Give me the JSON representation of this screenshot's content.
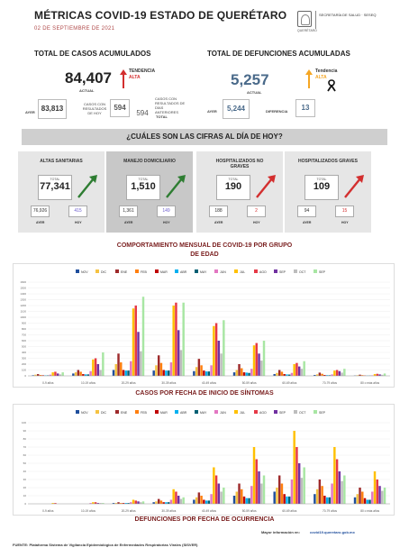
{
  "header": {
    "title": "MÉTRICAS COVID-19 ESTADO DE QUERÉTARO",
    "date": "02 DE SEPTIEMBRE DE 2021",
    "logo_text": "SECRETARÍA DE SALUD · SESEQ",
    "logo_caption": "QUERÉTARO"
  },
  "casos": {
    "heading": "TOTAL DE CASOS ACUMULADOS",
    "actual": "84,407",
    "actual_label": "ACTUAL",
    "tendencia_label": "TENDENCIA",
    "tendencia_value": "ALTA",
    "ayer_label": "AYER",
    "ayer": "83,813",
    "casos_con_label": "CASOS CON RESULTADOS DE HOY",
    "casos_con": "594",
    "casos_anteriores_label": "CASOS CON RESULTADOS DE DÍAS ANTERIORES",
    "total": "594",
    "total_label": "TOTAL"
  },
  "defunciones": {
    "heading": "TOTAL DE DEFUNCIONES ACUMULADAS",
    "actual": "5,257",
    "actual_label": "ACTUAL",
    "tendencia_label": "Tendencia",
    "tendencia_value": "ALTA",
    "ayer_label": "AYER",
    "ayer": "5,244",
    "diferencia_label": "DIFERENCIA",
    "diferencia": "13"
  },
  "banner": "¿CUÁLES SON LAS CIFRAS AL DÍA DE HOY?",
  "cards": [
    {
      "title": "ALTAS SANITARIAS",
      "total_label": "TOTAL",
      "total": "77,341",
      "ayer": "76,926",
      "hoy": "415",
      "ayer_label": "AYER",
      "hoy_label": "HOY",
      "arrow_color": "#2e7d32"
    },
    {
      "title": "MANEJO DOMICILIARIO",
      "total_label": "TOTAL",
      "total": "1,510",
      "ayer": "1,361",
      "hoy": "149",
      "ayer_label": "AYER",
      "hoy_label": "HOY",
      "arrow_color": "#2e7d32"
    },
    {
      "title": "HOSPITALIZADOS NO GRAVES",
      "total_label": "TOTAL",
      "total": "190",
      "ayer": "188",
      "hoy": "2",
      "ayer_label": "AYER",
      "hoy_label": "HOY",
      "arrow_color": "#d32f2f"
    },
    {
      "title": "HOSPITALIZADOS GRAVES",
      "total_label": "TOTAL",
      "total": "109",
      "ayer": "94",
      "hoy": "15",
      "ayer_label": "AYER",
      "hoy_label": "HOY",
      "arrow_color": "#d32f2f"
    }
  ],
  "section_title": "COMPORTAMIENTO MENSUAL DE COVID-19 POR GRUPO DE EDAD",
  "chart_data": [
    {
      "type": "bar",
      "title": "CASOS POR FECHA DE INICIO DE SÍNTOMAS",
      "categories": [
        "0-9 años",
        "10-19 años",
        "20-29 años",
        "30-39 años",
        "40-49 años",
        "50-59 años",
        "60-69 años",
        "70-79 años",
        "80 o más años"
      ],
      "ylim": [
        0,
        1600
      ],
      "yticks": [
        0,
        100,
        200,
        300,
        400,
        500,
        600,
        700,
        800,
        900,
        1000,
        1100,
        1200,
        1300,
        1400,
        1500,
        1600
      ],
      "colors": [
        "#1f4e9c",
        "#f5c242",
        "#9e2a2b",
        "#ff7f0e",
        "#c00000",
        "#00b0f0",
        "#005f73",
        "#e377c2",
        "#ffc000",
        "#e63946",
        "#7030a0",
        "#bdbdbd",
        "#a8e6a3"
      ],
      "series": [
        {
          "name": "NOV",
          "values": [
            10,
            40,
            100,
            90,
            80,
            60,
            30,
            15,
            5
          ]
        },
        {
          "name": "DIC",
          "values": [
            20,
            60,
            200,
            180,
            150,
            100,
            50,
            25,
            10
          ]
        },
        {
          "name": "ENE",
          "values": [
            30,
            100,
            380,
            350,
            290,
            200,
            100,
            55,
            20
          ]
        },
        {
          "name": "FEB",
          "values": [
            15,
            70,
            230,
            220,
            180,
            130,
            70,
            35,
            12
          ]
        },
        {
          "name": "MAR",
          "values": [
            10,
            30,
            100,
            100,
            90,
            60,
            30,
            15,
            5
          ]
        },
        {
          "name": "ABR",
          "values": [
            8,
            25,
            90,
            90,
            75,
            55,
            25,
            12,
            4
          ]
        },
        {
          "name": "MAY",
          "values": [
            8,
            25,
            90,
            90,
            75,
            50,
            22,
            10,
            4
          ]
        },
        {
          "name": "JUN",
          "values": [
            20,
            80,
            250,
            230,
            180,
            120,
            50,
            25,
            8
          ]
        },
        {
          "name": "JUL",
          "values": [
            60,
            280,
            1150,
            1200,
            850,
            520,
            200,
            90,
            30
          ]
        },
        {
          "name": "AGO",
          "values": [
            70,
            300,
            1200,
            1250,
            900,
            560,
            220,
            100,
            35
          ]
        },
        {
          "name": "SEP",
          "values": [
            40,
            200,
            750,
            780,
            600,
            380,
            160,
            80,
            25
          ]
        },
        {
          "name": "OCT",
          "values": [
            25,
            100,
            420,
            440,
            380,
            260,
            120,
            55,
            18
          ]
        },
        {
          "name": "SEP",
          "values": [
            60,
            400,
            1350,
            1250,
            950,
            600,
            250,
            120,
            40
          ]
        }
      ]
    },
    {
      "type": "bar",
      "title": "DEFUNCIONES POR FECHA DE OCURRENCIA",
      "categories": [
        "0-9 años",
        "10-19 años",
        "20-29 años",
        "30-39 años",
        "40-49 años",
        "50-59 años",
        "60-69 años",
        "70-79 años",
        "80 o más años"
      ],
      "ylim": [
        0,
        100
      ],
      "yticks": [
        0,
        10,
        20,
        30,
        40,
        50,
        60,
        70,
        80,
        90,
        100
      ],
      "colors": [
        "#1f4e9c",
        "#f5c242",
        "#9e2a2b",
        "#ff7f0e",
        "#c00000",
        "#00b0f0",
        "#005f73",
        "#e377c2",
        "#ffc000",
        "#e63946",
        "#7030a0",
        "#bdbdbd",
        "#a8e6a3"
      ],
      "series": [
        {
          "name": "NOV",
          "values": [
            0,
            0,
            1,
            2,
            5,
            10,
            15,
            12,
            8
          ]
        },
        {
          "name": "DIC",
          "values": [
            0,
            0,
            1,
            3,
            8,
            15,
            20,
            18,
            12
          ]
        },
        {
          "name": "ENE",
          "values": [
            0,
            0,
            2,
            6,
            14,
            25,
            35,
            30,
            20
          ]
        },
        {
          "name": "FEB",
          "values": [
            0,
            0,
            1,
            4,
            10,
            18,
            25,
            22,
            15
          ]
        },
        {
          "name": "MAR",
          "values": [
            0,
            0,
            1,
            2,
            5,
            9,
            12,
            10,
            7
          ]
        },
        {
          "name": "ABR",
          "values": [
            0,
            0,
            1,
            2,
            4,
            7,
            9,
            8,
            5
          ]
        },
        {
          "name": "MAY",
          "values": [
            0,
            0,
            1,
            2,
            4,
            7,
            9,
            8,
            5
          ]
        },
        {
          "name": "JUN",
          "values": [
            0,
            1,
            2,
            5,
            12,
            22,
            30,
            25,
            15
          ]
        },
        {
          "name": "JUL",
          "values": [
            1,
            2,
            5,
            18,
            45,
            70,
            90,
            70,
            40
          ]
        },
        {
          "name": "AGO",
          "values": [
            1,
            2,
            4,
            15,
            35,
            55,
            70,
            55,
            30
          ]
        },
        {
          "name": "SEP",
          "values": [
            0,
            1,
            3,
            10,
            25,
            40,
            50,
            40,
            22
          ]
        },
        {
          "name": "OCT",
          "values": [
            0,
            1,
            2,
            6,
            15,
            25,
            32,
            28,
            16
          ]
        },
        {
          "name": "SEP",
          "values": [
            0,
            1,
            3,
            8,
            20,
            35,
            45,
            35,
            20
          ]
        }
      ]
    }
  ],
  "footer": {
    "more_info_label": "Mayor información en:",
    "url": "covid19.queretaro.gob.mx",
    "source": "FUENTE: Plataforma Sistema de Vigilancia Epidemiológica de Enfermedades Respiratorias Virales (SISVER)"
  }
}
